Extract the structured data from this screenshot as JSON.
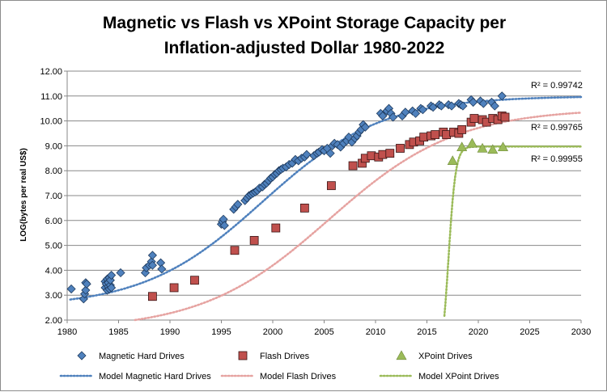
{
  "chart_data": {
    "type": "scatter",
    "title_lines": [
      "Magnetic vs Flash vs XPoint Storage Capacity per",
      "Inflation-adjusted Dollar 1980-2022"
    ],
    "xlabel": "",
    "ylabel": "LOG(bytes per real US$)",
    "xlim": [
      1980,
      2030
    ],
    "ylim": [
      2.0,
      12.0
    ],
    "x_ticks": [
      "1980",
      "1985",
      "1990",
      "1995",
      "2000",
      "2005",
      "2010",
      "2015",
      "2020",
      "2025",
      "2030"
    ],
    "y_ticks": [
      "2.00",
      "3.00",
      "4.00",
      "5.00",
      "6.00",
      "7.00",
      "8.00",
      "9.00",
      "10.00",
      "11.00",
      "12.00"
    ],
    "grid": "horizontal",
    "legend_position": "bottom",
    "series": [
      {
        "name": "Magnetic Hard Drives",
        "marker": "diamond",
        "color": "#4f81bd",
        "points": [
          [
            1980.4,
            3.25
          ],
          [
            1981.6,
            2.85
          ],
          [
            1981.7,
            3.05
          ],
          [
            1981.8,
            3.2
          ],
          [
            1981.8,
            3.5
          ],
          [
            1981.9,
            3.45
          ],
          [
            1983.7,
            3.3
          ],
          [
            1983.7,
            3.55
          ],
          [
            1983.8,
            3.45
          ],
          [
            1983.9,
            3.2
          ],
          [
            1983.9,
            3.65
          ],
          [
            1984.0,
            3.35
          ],
          [
            1984.0,
            3.5
          ],
          [
            1984.1,
            3.7
          ],
          [
            1984.1,
            3.25
          ],
          [
            1984.2,
            3.4
          ],
          [
            1984.2,
            3.6
          ],
          [
            1984.3,
            3.8
          ],
          [
            1984.3,
            3.3
          ],
          [
            1985.2,
            3.9
          ],
          [
            1987.6,
            3.9
          ],
          [
            1987.7,
            4.1
          ],
          [
            1988.0,
            4.2
          ],
          [
            1988.2,
            4.35
          ],
          [
            1988.3,
            4.2
          ],
          [
            1988.3,
            4.6
          ],
          [
            1989.1,
            4.3
          ],
          [
            1989.2,
            4.05
          ],
          [
            1995.0,
            5.85
          ],
          [
            1995.1,
            5.95
          ],
          [
            1995.2,
            6.05
          ],
          [
            1995.3,
            5.8
          ],
          [
            1996.2,
            6.45
          ],
          [
            1996.4,
            6.55
          ],
          [
            1996.6,
            6.65
          ],
          [
            1997.3,
            6.8
          ],
          [
            1997.5,
            6.9
          ],
          [
            1997.7,
            7.0
          ],
          [
            1997.9,
            7.05
          ],
          [
            1998.1,
            7.1
          ],
          [
            1998.3,
            7.15
          ],
          [
            1998.5,
            7.2
          ],
          [
            1998.7,
            7.3
          ],
          [
            1999.0,
            7.35
          ],
          [
            1999.2,
            7.45
          ],
          [
            1999.4,
            7.5
          ],
          [
            1999.6,
            7.6
          ],
          [
            1999.8,
            7.7
          ],
          [
            2000.0,
            7.75
          ],
          [
            2000.2,
            7.85
          ],
          [
            2000.4,
            7.9
          ],
          [
            2000.6,
            8.0
          ],
          [
            2000.8,
            8.05
          ],
          [
            2001.0,
            8.1
          ],
          [
            2001.3,
            8.15
          ],
          [
            2001.6,
            8.25
          ],
          [
            2001.9,
            8.3
          ],
          [
            2002.2,
            8.45
          ],
          [
            2002.5,
            8.4
          ],
          [
            2002.8,
            8.5
          ],
          [
            2003.1,
            8.55
          ],
          [
            2003.3,
            8.65
          ],
          [
            2004.0,
            8.6
          ],
          [
            2004.3,
            8.7
          ],
          [
            2004.5,
            8.75
          ],
          [
            2004.8,
            8.85
          ],
          [
            2005.0,
            8.8
          ],
          [
            2005.3,
            8.9
          ],
          [
            2005.6,
            8.7
          ],
          [
            2005.8,
            9.0
          ],
          [
            2006.0,
            9.1
          ],
          [
            2006.3,
            9.05
          ],
          [
            2006.6,
            8.95
          ],
          [
            2006.9,
            9.1
          ],
          [
            2007.2,
            9.2
          ],
          [
            2007.4,
            9.35
          ],
          [
            2007.7,
            9.15
          ],
          [
            2008.0,
            9.3
          ],
          [
            2008.2,
            9.4
          ],
          [
            2008.4,
            9.55
          ],
          [
            2008.6,
            9.65
          ],
          [
            2008.8,
            9.85
          ],
          [
            2009.0,
            9.75
          ],
          [
            2010.5,
            10.3
          ],
          [
            2010.7,
            10.2
          ],
          [
            2011.1,
            10.4
          ],
          [
            2011.3,
            10.5
          ],
          [
            2011.5,
            10.3
          ],
          [
            2011.7,
            10.15
          ],
          [
            2012.6,
            10.2
          ],
          [
            2012.9,
            10.35
          ],
          [
            2013.6,
            10.4
          ],
          [
            2013.9,
            10.3
          ],
          [
            2014.4,
            10.5
          ],
          [
            2014.6,
            10.45
          ],
          [
            2015.4,
            10.6
          ],
          [
            2015.6,
            10.55
          ],
          [
            2016.2,
            10.65
          ],
          [
            2016.4,
            10.6
          ],
          [
            2017.1,
            10.65
          ],
          [
            2017.4,
            10.6
          ],
          [
            2018.1,
            10.7
          ],
          [
            2018.3,
            10.65
          ],
          [
            2018.5,
            10.6
          ],
          [
            2019.3,
            10.85
          ],
          [
            2019.5,
            10.75
          ],
          [
            2020.2,
            10.8
          ],
          [
            2020.5,
            10.7
          ],
          [
            2021.3,
            10.75
          ],
          [
            2021.6,
            10.6
          ],
          [
            2022.3,
            11.0
          ]
        ]
      },
      {
        "name": "Flash Drives",
        "marker": "square",
        "color": "#c0504d",
        "points": [
          [
            1988.3,
            2.95
          ],
          [
            1990.4,
            3.3
          ],
          [
            1992.4,
            3.6
          ],
          [
            1996.3,
            4.8
          ],
          [
            1998.2,
            5.2
          ],
          [
            2000.3,
            5.7
          ],
          [
            2003.1,
            6.5
          ],
          [
            2005.7,
            7.4
          ],
          [
            2007.8,
            8.2
          ],
          [
            2008.7,
            8.3
          ],
          [
            2009.0,
            8.5
          ],
          [
            2009.6,
            8.6
          ],
          [
            2010.3,
            8.55
          ],
          [
            2010.7,
            8.65
          ],
          [
            2011.4,
            8.7
          ],
          [
            2012.4,
            8.9
          ],
          [
            2013.3,
            9.05
          ],
          [
            2013.7,
            9.15
          ],
          [
            2014.3,
            9.2
          ],
          [
            2014.7,
            9.35
          ],
          [
            2015.4,
            9.4
          ],
          [
            2015.8,
            9.45
          ],
          [
            2016.6,
            9.55
          ],
          [
            2016.9,
            9.45
          ],
          [
            2017.6,
            9.55
          ],
          [
            2018.1,
            9.5
          ],
          [
            2018.4,
            9.65
          ],
          [
            2019.3,
            9.95
          ],
          [
            2019.6,
            10.1
          ],
          [
            2020.4,
            10.05
          ],
          [
            2020.8,
            9.95
          ],
          [
            2021.4,
            10.1
          ],
          [
            2021.9,
            10.05
          ],
          [
            2022.3,
            10.2
          ],
          [
            2022.6,
            10.15
          ]
        ]
      },
      {
        "name": "XPoint Drives",
        "marker": "triangle",
        "color": "#9bbb59",
        "points": [
          [
            2017.5,
            8.4
          ],
          [
            2018.4,
            8.95
          ],
          [
            2019.4,
            9.1
          ],
          [
            2020.4,
            8.9
          ],
          [
            2021.4,
            8.85
          ],
          [
            2022.4,
            8.95
          ]
        ]
      }
    ],
    "models": [
      {
        "name": "Model Magnetic Hard Drives",
        "color": "#4f81bd",
        "r2": "R² = 0.99742"
      },
      {
        "name": "Model Flash Drives",
        "color": "#e6a3a1",
        "r2": "R² = 0.99765"
      },
      {
        "name": "Model XPoint Drives",
        "color": "#9bbb59",
        "r2": "R² = 0.99955"
      }
    ]
  }
}
